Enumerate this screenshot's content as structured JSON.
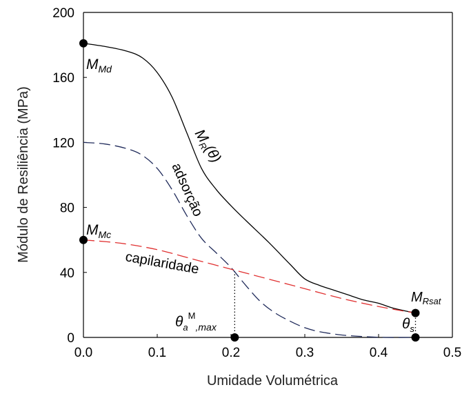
{
  "chart_data": {
    "type": "line",
    "xlabel": "Umidade Volumétrica",
    "ylabel": "Módulo de Resiliência (MPa)",
    "xlim": [
      0.0,
      0.5
    ],
    "ylim": [
      0,
      200
    ],
    "xticks": [
      "0.0",
      "0.1",
      "0.2",
      "0.3",
      "0.4",
      "0.5"
    ],
    "yticks": [
      "0",
      "40",
      "80",
      "120",
      "160",
      "200"
    ],
    "grid": false,
    "series": [
      {
        "name": "MR(θ)",
        "color": "#000000",
        "style": "solid",
        "x": [
          0.0,
          0.03,
          0.06,
          0.08,
          0.1,
          0.12,
          0.14,
          0.16,
          0.18,
          0.2,
          0.22,
          0.25,
          0.28,
          0.3,
          0.32,
          0.34,
          0.36,
          0.38,
          0.4,
          0.42,
          0.45
        ],
        "y": [
          181,
          179,
          176,
          172,
          163,
          148,
          126,
          104,
          91,
          81,
          72,
          59,
          45,
          36,
          32,
          29,
          26,
          23,
          21,
          18,
          15
        ]
      },
      {
        "name": "adsorção",
        "color": "#1f2a5a",
        "style": "dashed",
        "x": [
          0.0,
          0.03,
          0.06,
          0.08,
          0.1,
          0.12,
          0.14,
          0.16,
          0.18,
          0.2,
          0.22,
          0.24,
          0.26,
          0.28,
          0.3,
          0.32,
          0.35,
          0.38,
          0.41,
          0.45
        ],
        "y": [
          120,
          119,
          116,
          112,
          104,
          91,
          75,
          61,
          52,
          43,
          32,
          22,
          15,
          10,
          6,
          3.5,
          1.5,
          0.5,
          0,
          0
        ]
      },
      {
        "name": "capilaridade",
        "color": "#e03030",
        "style": "dashed",
        "x": [
          0.0,
          0.05,
          0.1,
          0.15,
          0.2,
          0.25,
          0.3,
          0.35,
          0.4,
          0.45
        ],
        "y": [
          60,
          58,
          54,
          48,
          42,
          36,
          30,
          24,
          19,
          15
        ]
      }
    ],
    "points": [
      {
        "x": 0.0,
        "y": 181
      },
      {
        "x": 0.0,
        "y": 60
      },
      {
        "x": 0.205,
        "y": 0
      },
      {
        "x": 0.45,
        "y": 15
      },
      {
        "x": 0.45,
        "y": 0
      }
    ],
    "guides": [
      {
        "x": 0.205,
        "y0": 0,
        "y1": 42
      },
      {
        "x": 0.45,
        "y0": 0,
        "y1": 15
      }
    ],
    "annotations": {
      "mr_main": "M",
      "mr_sub": "R",
      "mr_arg": "(θ)",
      "adsorcao": "adsorção",
      "capilaridade": "capilaridade",
      "mmd_main": "M",
      "mmd_sub": "Md",
      "mmc_main": "M",
      "mmc_sub": "Mc",
      "mrsat_main": "M",
      "mrsat_sub": "Rsat",
      "theta_a_main": "θ",
      "theta_a_sub": "a",
      "theta_a_sup": "M",
      "theta_a_sub2": ",max",
      "theta_s_main": "θ",
      "theta_s_sub": "s"
    }
  }
}
